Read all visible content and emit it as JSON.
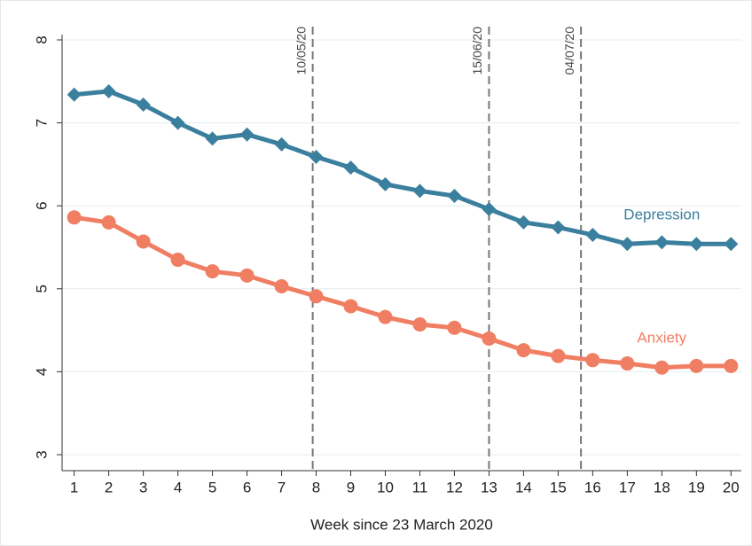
{
  "chart_data": {
    "type": "line",
    "x_label": "Week since 23 March 2020",
    "x": [
      1,
      2,
      3,
      4,
      5,
      6,
      7,
      8,
      9,
      10,
      11,
      12,
      13,
      14,
      15,
      16,
      17,
      18,
      19,
      20
    ],
    "xlim": [
      0.65,
      20.3
    ],
    "xticks": [
      1,
      2,
      3,
      4,
      5,
      6,
      7,
      8,
      9,
      10,
      11,
      12,
      13,
      14,
      15,
      16,
      17,
      18,
      19,
      20
    ],
    "ylim": [
      3,
      8
    ],
    "yticks": [
      3,
      4,
      5,
      6,
      7,
      8
    ],
    "grid": true,
    "series": [
      {
        "name": "Depression",
        "color": "#3b7f9e",
        "marker": "diamond",
        "values": [
          7.34,
          7.38,
          7.22,
          7.0,
          6.81,
          6.86,
          6.74,
          6.59,
          6.46,
          6.26,
          6.18,
          6.12,
          5.96,
          5.8,
          5.74,
          5.65,
          5.54,
          5.56,
          5.54,
          5.54
        ]
      },
      {
        "name": "Anxiety",
        "color": "#f07e63",
        "marker": "circle",
        "values": [
          5.86,
          5.8,
          5.57,
          5.35,
          5.21,
          5.16,
          5.03,
          4.91,
          4.79,
          4.66,
          4.57,
          4.53,
          4.4,
          4.26,
          4.19,
          4.14,
          4.1,
          4.05,
          4.07,
          4.07
        ]
      }
    ],
    "annotations": [
      {
        "x": 7.9,
        "label": "10/05/20"
      },
      {
        "x": 13,
        "label": "15/06/20"
      },
      {
        "x": 15.66,
        "label": "04/07/20"
      }
    ]
  }
}
